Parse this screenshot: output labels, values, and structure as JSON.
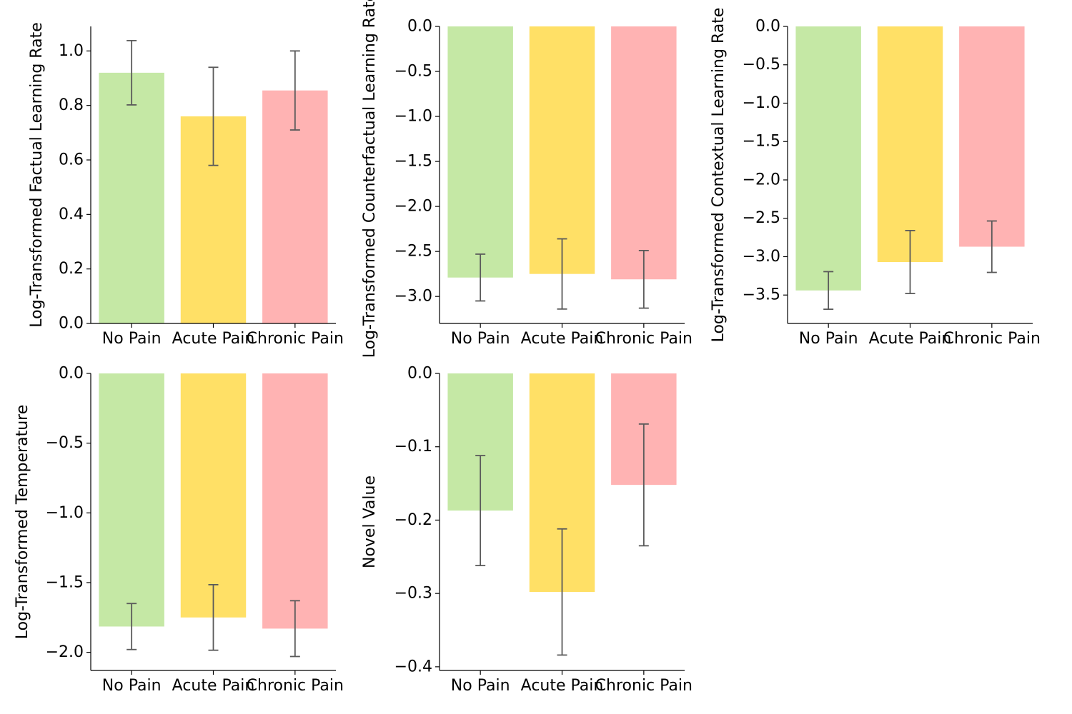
{
  "colors": {
    "no_pain": "#c5e8a5",
    "acute_pain": "#ffe066",
    "chronic_pain": "#ffb3b3",
    "error_bar": "#5a5a5a",
    "axis": "#000000"
  },
  "chart_data": [
    {
      "type": "bar",
      "title": "",
      "categories": [
        "No Pain",
        "Acute Pain",
        "Chronic Pain"
      ],
      "values": [
        0.92,
        0.76,
        0.855
      ],
      "errors": [
        0.118,
        0.18,
        0.145
      ],
      "ylabel": "Log-Transformed Factual Learning Rate",
      "xlabel": "",
      "ylim": [
        0,
        1.09
      ],
      "yticks": [
        0.0,
        0.2,
        0.4,
        0.6,
        0.8,
        1.0
      ],
      "ytick_labels": [
        "0.0",
        "0.2",
        "0.4",
        "0.6",
        "0.8",
        "1.0"
      ]
    },
    {
      "type": "bar",
      "title": "",
      "categories": [
        "No Pain",
        "Acute Pain",
        "Chronic Pain"
      ],
      "values": [
        -2.79,
        -2.75,
        -2.81
      ],
      "errors": [
        0.26,
        0.39,
        0.32
      ],
      "ylabel": "Log-Transformed Counterfactual Learning Rate",
      "xlabel": "",
      "ylim": [
        -3.3,
        0
      ],
      "yticks": [
        0.0,
        -0.5,
        -1.0,
        -1.5,
        -2.0,
        -2.5,
        -3.0
      ],
      "ytick_labels": [
        "0.0",
        "−0.5",
        "−1.0",
        "−1.5",
        "−2.0",
        "−2.5",
        "−3.0"
      ]
    },
    {
      "type": "bar",
      "title": "",
      "categories": [
        "No Pain",
        "Acute Pain",
        "Chronic Pain"
      ],
      "values": [
        -3.44,
        -3.07,
        -2.87
      ],
      "errors": [
        0.245,
        0.41,
        0.335
      ],
      "ylabel": "Log-Transformed Contextual Learning Rate",
      "xlabel": "",
      "ylim": [
        -3.87,
        0
      ],
      "yticks": [
        0.0,
        -0.5,
        -1.0,
        -1.5,
        -2.0,
        -2.5,
        -3.0,
        -3.5
      ],
      "ytick_labels": [
        "0.0",
        "−0.5",
        "−1.0",
        "−1.5",
        "−2.0",
        "−2.5",
        "−3.0",
        "−3.5"
      ]
    },
    {
      "type": "bar",
      "title": "",
      "categories": [
        "No Pain",
        "Acute Pain",
        "Chronic Pain"
      ],
      "values": [
        -1.815,
        -1.75,
        -1.83
      ],
      "errors": [
        0.165,
        0.235,
        0.2
      ],
      "ylabel": "Log-Transformed Temperature",
      "xlabel": "",
      "ylim": [
        -2.13,
        0
      ],
      "yticks": [
        0.0,
        -0.5,
        -1.0,
        -1.5,
        -2.0
      ],
      "ytick_labels": [
        "0.0",
        "−0.5",
        "−1.0",
        "−1.5",
        "−2.0"
      ]
    },
    {
      "type": "bar",
      "title": "",
      "categories": [
        "No Pain",
        "Acute Pain",
        "Chronic Pain"
      ],
      "values": [
        -0.187,
        -0.298,
        -0.152
      ],
      "errors": [
        0.075,
        0.086,
        0.083
      ],
      "ylabel": "Novel Value",
      "xlabel": "",
      "ylim": [
        -0.405,
        0
      ],
      "yticks": [
        0.0,
        -0.1,
        -0.2,
        -0.3,
        -0.4
      ],
      "ytick_labels": [
        "0.0",
        "−0.1",
        "−0.2",
        "−0.3",
        "−0.4"
      ]
    }
  ]
}
